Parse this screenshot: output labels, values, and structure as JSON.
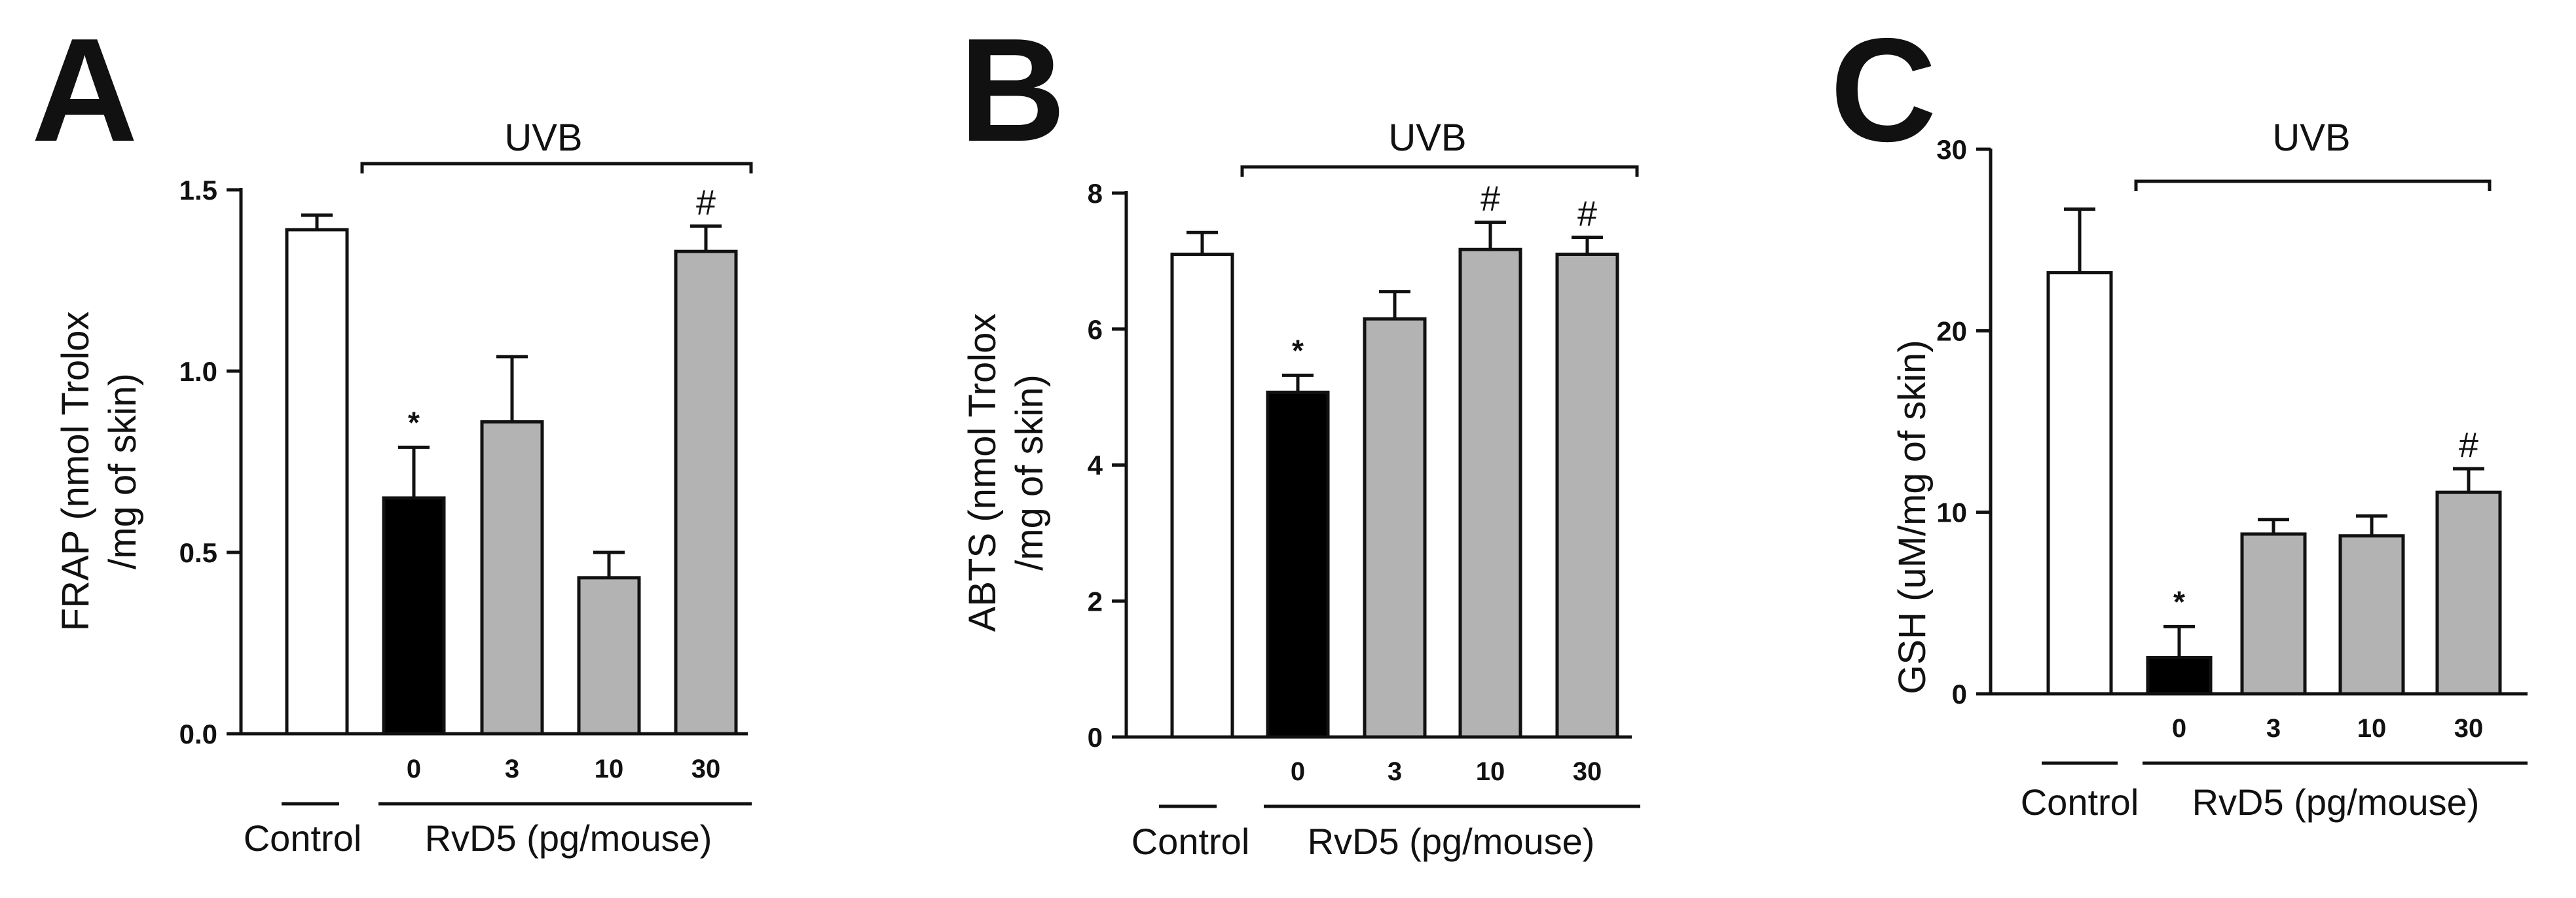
{
  "figure": {
    "panels": [
      "A",
      "B",
      "C"
    ],
    "treatment_label": "UVB",
    "control_label": "Control",
    "group_label": "RvD5 (pg/mouse)"
  },
  "colors": {
    "control": "#ffffff",
    "uvb": "#000000",
    "rvd5": "#b3b3b3",
    "ink": "#111111"
  },
  "chart_data": [
    {
      "panel": "A",
      "type": "bar",
      "ylabel_lines": [
        "FRAP (nmol Trolox",
        "/mg of skin)"
      ],
      "ylim": [
        0,
        1.5
      ],
      "yticks": [
        0.0,
        0.5,
        1.0,
        1.5
      ],
      "ytick_labels": [
        "0.0",
        "0.5",
        "1.0",
        "1.5"
      ],
      "categories": [
        "",
        "0",
        "3",
        "10",
        "30"
      ],
      "values": [
        1.39,
        0.65,
        0.86,
        0.43,
        1.33
      ],
      "errors": [
        0.04,
        0.14,
        0.18,
        0.07,
        0.07
      ],
      "significance": [
        "",
        "*",
        "",
        "",
        "#"
      ]
    },
    {
      "panel": "B",
      "type": "bar",
      "ylabel_lines": [
        "ABTS (nmol Trolox",
        "/mg of skin)"
      ],
      "ylim": [
        0,
        8
      ],
      "yticks": [
        0,
        2,
        4,
        6,
        8
      ],
      "ytick_labels": [
        "0",
        "2",
        "4",
        "6",
        "8"
      ],
      "categories": [
        "",
        "0",
        "3",
        "10",
        "30"
      ],
      "values": [
        7.1,
        5.07,
        6.15,
        7.17,
        7.1
      ],
      "errors": [
        0.32,
        0.25,
        0.4,
        0.4,
        0.25
      ],
      "significance": [
        "",
        "*",
        "",
        "#",
        "#"
      ]
    },
    {
      "panel": "C",
      "type": "bar",
      "ylabel_lines": [
        "GSH (uM/mg of skin)"
      ],
      "ylim": [
        0,
        30
      ],
      "yticks": [
        0,
        10,
        20,
        30
      ],
      "ytick_labels": [
        "0",
        "10",
        "20",
        "30"
      ],
      "categories": [
        "",
        "0",
        "3",
        "10",
        "30"
      ],
      "values": [
        23.2,
        2.0,
        8.8,
        8.7,
        11.1
      ],
      "errors": [
        3.5,
        1.7,
        0.8,
        1.1,
        1.3
      ],
      "significance": [
        "",
        "*",
        "",
        "",
        "#"
      ]
    }
  ]
}
